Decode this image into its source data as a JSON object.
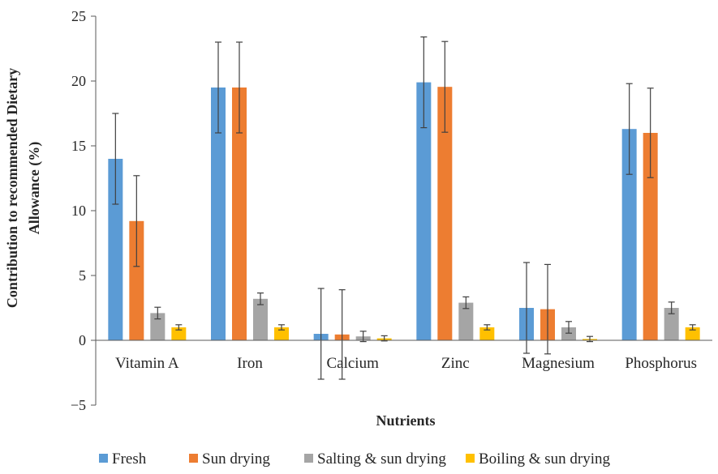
{
  "chart_data": {
    "type": "bar",
    "title": "",
    "xlabel": "Nutrients",
    "ylabel_lines": [
      "Contribution to recommended Dietary",
      "Allowance (%)"
    ],
    "ylim": [
      -5,
      25
    ],
    "yticks": [
      -5,
      0,
      5,
      10,
      15,
      20,
      25
    ],
    "ytick_labels": [
      "−5",
      "0",
      "5",
      "10",
      "15",
      "20",
      "25"
    ],
    "grid": false,
    "legend_position": "bottom",
    "categories": [
      "Vitamin A",
      "Iron",
      "Calcium",
      "Zinc",
      "Magnesium",
      "Phosphorus"
    ],
    "series": [
      {
        "name": "Fresh",
        "color": "#5b9bd5",
        "values": [
          14.0,
          19.5,
          0.5,
          19.9,
          2.5,
          16.3
        ],
        "errors": [
          3.5,
          3.5,
          3.5,
          3.5,
          3.5,
          3.5
        ]
      },
      {
        "name": "Sun drying",
        "color": "#ed7d31",
        "values": [
          9.2,
          19.5,
          0.45,
          19.55,
          2.4,
          16.0
        ],
        "errors": [
          3.5,
          3.5,
          3.45,
          3.5,
          3.45,
          3.45
        ]
      },
      {
        "name": "Salting & sun drying",
        "color": "#a5a5a5",
        "values": [
          2.1,
          3.2,
          0.3,
          2.9,
          1.0,
          2.5
        ],
        "errors": [
          0.45,
          0.45,
          0.4,
          0.45,
          0.45,
          0.45
        ]
      },
      {
        "name": "Boiling & sun drying",
        "color": "#ffc000",
        "values": [
          1.0,
          1.0,
          0.15,
          1.0,
          0.1,
          1.0
        ],
        "errors": [
          0.2,
          0.2,
          0.2,
          0.2,
          0.2,
          0.2
        ]
      }
    ]
  }
}
